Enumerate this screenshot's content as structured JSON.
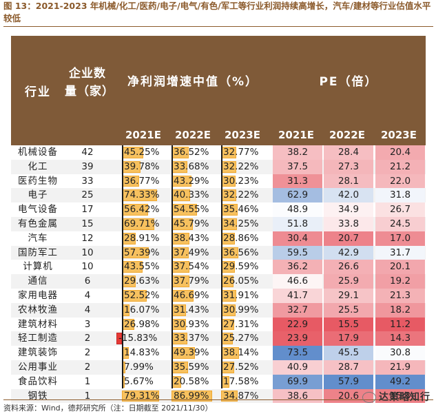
{
  "figure_title": "图 13：2021-2023 年机械/化工/医药/电子/电气/有色/军工等行业利润持续高增长，汽车/建材等行业估值水平较低",
  "headers": {
    "industry": "行业",
    "count": "企业数量（家）",
    "profit": "净利润增速中值（%）",
    "pe": "PE（倍）",
    "years": [
      "2021E",
      "2022E",
      "2023E"
    ]
  },
  "rows": [
    {
      "name": "机械设备",
      "count": "42",
      "g21": "45.25%",
      "g22": "36.52%",
      "g23": "32.77%",
      "pe21": "38.2",
      "pe22": "28.4",
      "pe23": "20.4"
    },
    {
      "name": "化工",
      "count": "39",
      "g21": "39.78%",
      "g22": "33.68%",
      "g23": "32.22%",
      "pe21": "37.5",
      "pe22": "27.3",
      "pe23": "21.2"
    },
    {
      "name": "医药生物",
      "count": "33",
      "g21": "36.77%",
      "g22": "43.29%",
      "g23": "30.23%",
      "pe21": "31.3",
      "pe22": "28.1",
      "pe23": "22.0"
    },
    {
      "name": "电子",
      "count": "25",
      "g21": "74.33%",
      "g22": "40.33%",
      "g23": "32.22%",
      "pe21": "62.9",
      "pe22": "42.0",
      "pe23": "31.8"
    },
    {
      "name": "电气设备",
      "count": "17",
      "g21": "56.42%",
      "g22": "54.55%",
      "g23": "35.46%",
      "pe21": "48.9",
      "pe22": "34.9",
      "pe23": "26.7"
    },
    {
      "name": "有色金属",
      "count": "15",
      "g21": "69.71%",
      "g22": "45.79%",
      "g23": "34.25%",
      "pe21": "51.8",
      "pe22": "33.8",
      "pe23": "24.5"
    },
    {
      "name": "汽车",
      "count": "12",
      "g21": "28.91%",
      "g22": "38.43%",
      "g23": "28.86%",
      "pe21": "30.4",
      "pe22": "20.7",
      "pe23": "17.0"
    },
    {
      "name": "国防军工",
      "count": "10",
      "g21": "57.39%",
      "g22": "37.49%",
      "g23": "36.56%",
      "pe21": "59.5",
      "pe22": "42.9",
      "pe23": "31.7"
    },
    {
      "name": "计算机",
      "count": "10",
      "g21": "43.55%",
      "g22": "37.54%",
      "g23": "29.59%",
      "pe21": "36.2",
      "pe22": "26.6",
      "pe23": "20.1"
    },
    {
      "name": "通信",
      "count": "6",
      "g21": "29.63%",
      "g22": "37.79%",
      "g23": "26.05%",
      "pe21": "46.6",
      "pe22": "25.9",
      "pe23": "19.2"
    },
    {
      "name": "家用电器",
      "count": "4",
      "g21": "52.52%",
      "g22": "46.69%",
      "g23": "31.91%",
      "pe21": "41.7",
      "pe22": "29.1",
      "pe23": "21.3"
    },
    {
      "name": "农林牧渔",
      "count": "4",
      "g21": "16.07%",
      "g22": "31.43%",
      "g23": "30.99%",
      "pe21": "32.7",
      "pe22": "25.5",
      "pe23": "18.2"
    },
    {
      "name": "建筑材料",
      "count": "3",
      "g21": "26.98%",
      "g22": "30.93%",
      "g23": "27.31%",
      "pe21": "22.9",
      "pe22": "15.5",
      "pe23": "11.2"
    },
    {
      "name": "轻工制造",
      "count": "2",
      "g21": "-15.83%",
      "g22": "33.37%",
      "g23": "25.27%",
      "pe21": "23.9",
      "pe22": "17.9",
      "pe23": "14.3"
    },
    {
      "name": "建筑装饰",
      "count": "2",
      "g21": "14.83%",
      "g22": "49.39%",
      "g23": "38.14%",
      "pe21": "73.5",
      "pe22": "45.5",
      "pe23": "30.8"
    },
    {
      "name": "公用事业",
      "count": "2",
      "g21": "7.99%",
      "g22": "35.59%",
      "g23": "27.52%",
      "pe21": "40.9",
      "pe22": "28.7",
      "pe23": "21.9"
    },
    {
      "name": "食品饮料",
      "count": "1",
      "g21": "5.67%",
      "g22": "20.58%",
      "g23": "17.58%",
      "pe21": "69.9",
      "pe22": "57.9",
      "pe23": "49.2"
    },
    {
      "name": "钢铁",
      "count": "1",
      "g21": "79.31%",
      "g22": "86.99%",
      "g23": "34.87%",
      "pe21": "38.6",
      "pe22": "20.6",
      "pe23": "15.3"
    }
  ],
  "footer": "资料来源：Wind，德邦研究所（注：日期截至 2021/11/30）",
  "watermark": "达策略知行"
}
